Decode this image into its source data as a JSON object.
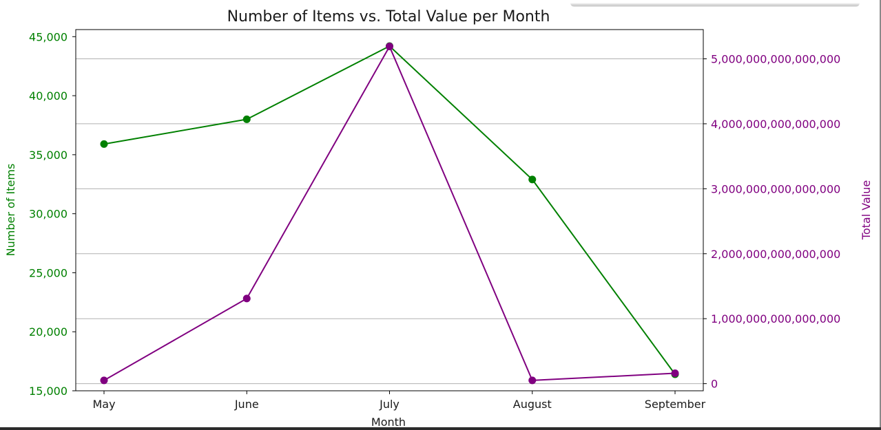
{
  "chart_data": {
    "type": "line",
    "title": "Number of Items vs. Total Value per Month",
    "xlabel": "Month",
    "categories": [
      "May",
      "June",
      "July",
      "August",
      "September"
    ],
    "left_axis": {
      "label": "Number of Items",
      "color": "#008000",
      "ylim": [
        15000,
        45600
      ],
      "ticks": [
        15000,
        20000,
        25000,
        30000,
        35000,
        40000,
        45000
      ],
      "tick_labels": [
        "15,000",
        "20,000",
        "25,000",
        "30,000",
        "35,000",
        "40,000",
        "45,000"
      ]
    },
    "right_axis": {
      "label": "Total Value",
      "color": "#800080",
      "ylim": [
        -110000000000000,
        5450000000000000
      ],
      "ticks": [
        0,
        1000000000000000,
        2000000000000000,
        3000000000000000,
        4000000000000000,
        5000000000000000
      ],
      "tick_labels": [
        "0",
        "1,000,000,000,000,000",
        "2,000,000,000,000,000",
        "3,000,000,000,000,000",
        "4,000,000,000,000,000",
        "5,000,000,000,000,000"
      ]
    },
    "series": [
      {
        "axis": "left",
        "color": "#008000",
        "marker": "circle",
        "values": [
          35900,
          38000,
          44200,
          32900,
          16400
        ]
      },
      {
        "axis": "right",
        "color": "#800080",
        "marker": "circle",
        "values": [
          50000000000000,
          1310000000000000,
          5190000000000000,
          50000000000000,
          160000000000000
        ]
      }
    ],
    "grid": "horizontal (right axis ticks)",
    "grid_color": "#b0b0b0"
  }
}
